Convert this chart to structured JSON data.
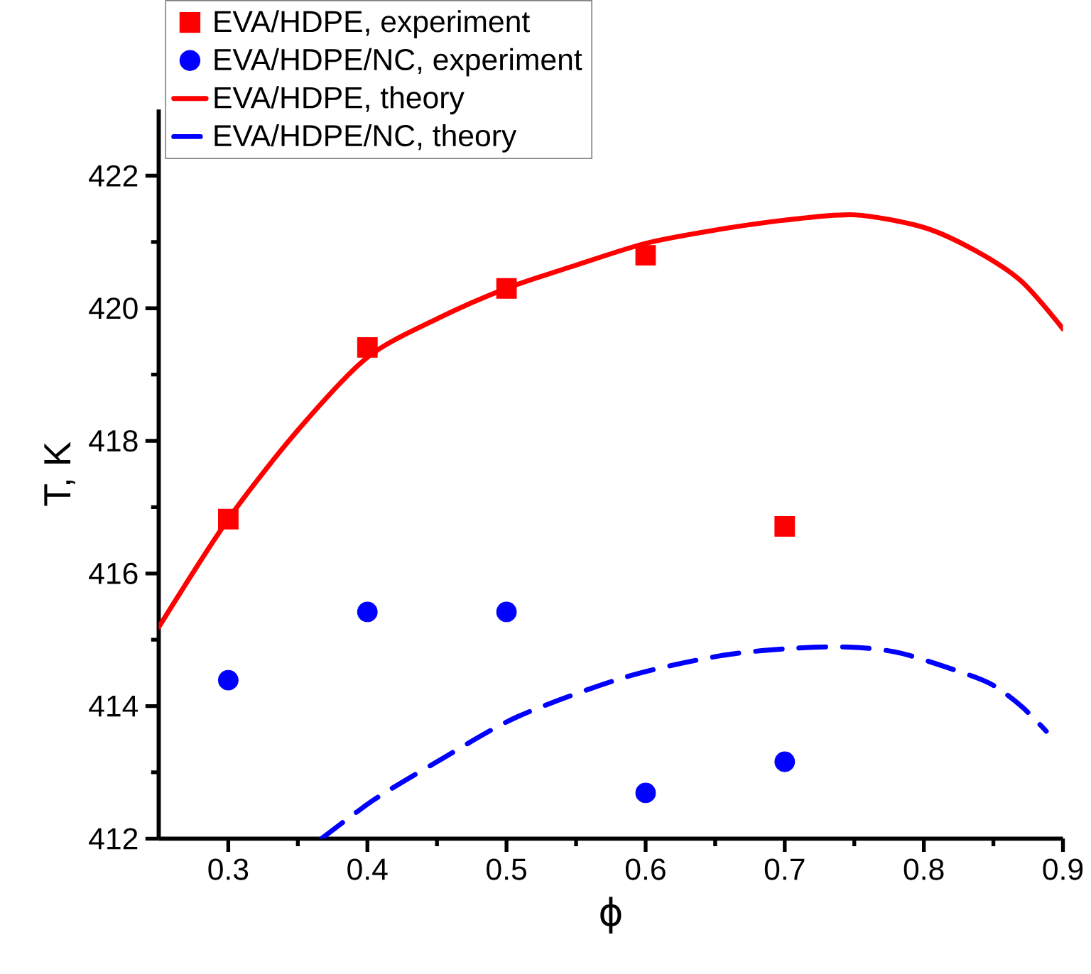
{
  "chart_data": {
    "type": "scatter",
    "xlabel": "ϕ",
    "ylabel": "T, K",
    "xlim": [
      0.25,
      0.9
    ],
    "ylim": [
      412,
      423
    ],
    "xticks": [
      0.3,
      0.4,
      0.5,
      0.6,
      0.7,
      0.8,
      0.9
    ],
    "yticks": [
      412,
      414,
      416,
      418,
      420,
      422
    ],
    "legend": "top left",
    "grid": false,
    "series": [
      {
        "name": "EVA/HDPE, experiment",
        "marker": "square",
        "color": "#ff0000",
        "x": [
          0.3,
          0.4,
          0.5,
          0.6,
          0.7
        ],
        "values": [
          416.82,
          419.41,
          420.3,
          420.8,
          416.71
        ]
      },
      {
        "name": "EVA/HDPE/NC, experiment",
        "marker": "circle",
        "color": "#0000ff",
        "x": [
          0.3,
          0.4,
          0.5,
          0.6,
          0.7
        ],
        "values": [
          414.39,
          415.42,
          415.42,
          412.69,
          413.16
        ]
      },
      {
        "name": "EVA/HDPE, theory",
        "type": "line",
        "line_style": "solid",
        "color": "#ff0000",
        "x": [
          0.25,
          0.3,
          0.35,
          0.4,
          0.45,
          0.5,
          0.55,
          0.6,
          0.65,
          0.7,
          0.75,
          0.8,
          0.837,
          0.87,
          0.9
        ],
        "values": [
          415.19,
          416.82,
          418.16,
          419.26,
          419.84,
          420.3,
          420.65,
          420.98,
          421.18,
          421.33,
          421.41,
          421.22,
          420.87,
          420.41,
          419.69
        ]
      },
      {
        "name": "EVA/HDPE/NC, theory",
        "type": "line",
        "line_style": "dashed",
        "color": "#0000ff",
        "x": [
          0.367,
          0.405,
          0.45,
          0.508,
          0.586,
          0.654,
          0.705,
          0.746,
          0.783,
          0.831,
          0.851,
          0.871,
          0.888
        ],
        "values": [
          412.0,
          412.59,
          413.16,
          413.84,
          414.44,
          414.76,
          414.87,
          414.89,
          414.8,
          414.48,
          414.3,
          413.98,
          413.62
        ]
      }
    ]
  }
}
